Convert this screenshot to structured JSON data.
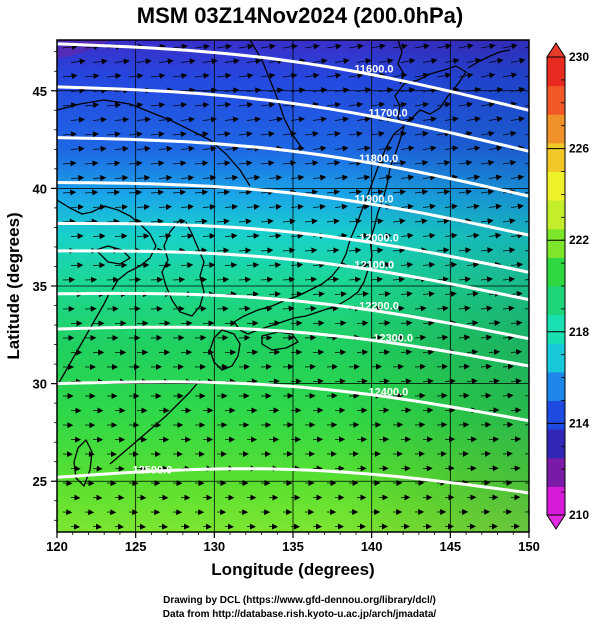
{
  "title": "MSM 03Z14Nov2024 (200.0hPa)",
  "x_axis": {
    "label": "Longitude (degrees)",
    "range": [
      120,
      150
    ],
    "ticks": [
      120,
      125,
      130,
      135,
      140,
      145,
      150
    ]
  },
  "y_axis": {
    "label": "Latitude  (degrees)",
    "range": [
      22.4,
      47.6
    ],
    "ticks": [
      25,
      30,
      35,
      40,
      45
    ]
  },
  "colorbar": {
    "range": [
      210,
      230
    ],
    "labels": [
      210,
      214,
      218,
      222,
      226,
      230
    ],
    "colors": [
      "#d81bd8",
      "#7a1aa8",
      "#3228b8",
      "#1f4ae0",
      "#1e86e8",
      "#16c8d8",
      "#18e0b0",
      "#1ed47a",
      "#2ed840",
      "#7ee62a",
      "#c4ee2a",
      "#eef02a",
      "#f0c828",
      "#f09028",
      "#f05828",
      "#e82a20"
    ]
  },
  "contours": [
    {
      "label": "11600.0",
      "lat_west": 47.4,
      "lat_east": 44.0
    },
    {
      "label": "11700.0",
      "lat_west": 45.2,
      "lat_east": 41.9
    },
    {
      "label": "11800.0",
      "lat_west": 42.6,
      "lat_east": 39.6
    },
    {
      "label": "11900.0",
      "lat_west": 40.3,
      "lat_east": 37.6
    },
    {
      "label": "12000.0",
      "lat_west": 38.2,
      "lat_east": 35.7
    },
    {
      "label": "12100.0",
      "lat_west": 36.8,
      "lat_east": 34.3
    },
    {
      "label": "12200.0",
      "lat_west": 34.6,
      "lat_east": 32.3
    },
    {
      "label": "12300.0",
      "lat_west": 32.8,
      "lat_east": 30.9
    },
    {
      "label": "12400.0",
      "lat_west": 30.0,
      "lat_east": 28.1
    },
    {
      "label": "12500.0",
      "lat_west": 25.2,
      "lat_east": 24.4
    }
  ],
  "credits": [
    "Drawing by DCL (https://www.gfd-dennou.org/library/dcl/)",
    "Data from http://database.rish.kyoto-u.ac.jp/arch/jmadata/"
  ]
}
